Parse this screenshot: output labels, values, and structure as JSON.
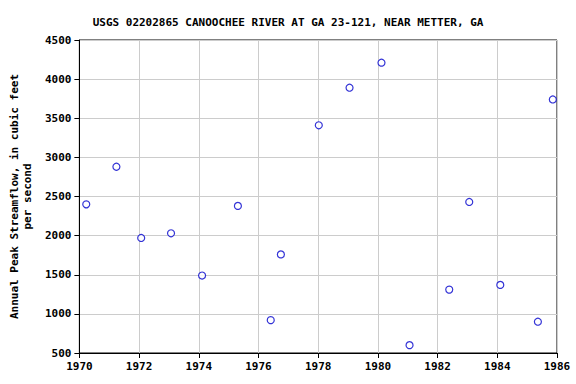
{
  "chart_data": {
    "type": "scatter",
    "title": "USGS 02202865 CANOOCHEE RIVER AT GA 23-121, NEAR METTER, GA",
    "y_label": "Annual Peak Streamflow, in cubic feet\nper second",
    "x": [
      1970.23,
      1971.24,
      1972.07,
      1973.07,
      1974.11,
      1975.31,
      1976.41,
      1976.75,
      1978.02,
      1979.05,
      1980.12,
      1981.06,
      1982.39,
      1983.06,
      1984.1,
      1985.36,
      1985.86
    ],
    "values": [
      2400,
      2880,
      1970,
      2030,
      1490,
      2380,
      920,
      1760,
      3410,
      3890,
      4210,
      600,
      1310,
      2430,
      1370,
      900,
      3740
    ],
    "color": "#0000cc",
    "marker": "open_circle",
    "xlim": [
      1970,
      1986
    ],
    "xticks": [
      1970,
      1972,
      1974,
      1976,
      1978,
      1980,
      1982,
      1984,
      1986
    ],
    "ylim": [
      500,
      4500
    ],
    "yticks": [
      500,
      1000,
      1500,
      2000,
      2500,
      3000,
      3500,
      4000,
      4500
    ],
    "grid": true
  }
}
